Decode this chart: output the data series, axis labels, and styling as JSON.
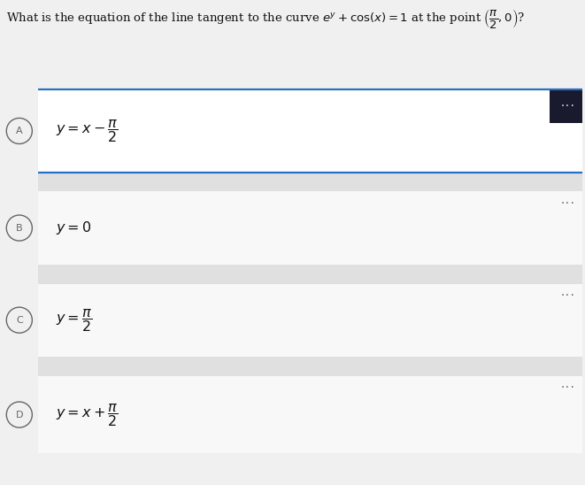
{
  "bg_color": "#f0f0f0",
  "option_bg_color": "#ffffff",
  "option_bg_alt": "#f5f5f5",
  "selected_border_color": "#2970c4",
  "selected_dots_bg": "#1a1a2e",
  "question_color": "#111111",
  "option_text_color": "#111111",
  "label_circle_color": "#666666",
  "dots_color": "#555555",
  "gap_color": "#e0e0e0",
  "formulas": [
    "$y = x - \\dfrac{\\pi}{2}$",
    "$y = 0$",
    "$y = \\dfrac{\\pi}{2}$",
    "$y = x + \\dfrac{\\pi}{2}$"
  ],
  "labels": [
    "A",
    "B",
    "C",
    "D"
  ],
  "selected": [
    true,
    false,
    false,
    false
  ],
  "question_fontsize": 9.5,
  "formula_fontsize": 11.5,
  "label_fontsize": 8,
  "dots_fontsize": 6,
  "fig_width": 6.61,
  "fig_height": 5.48,
  "dpi": 100
}
